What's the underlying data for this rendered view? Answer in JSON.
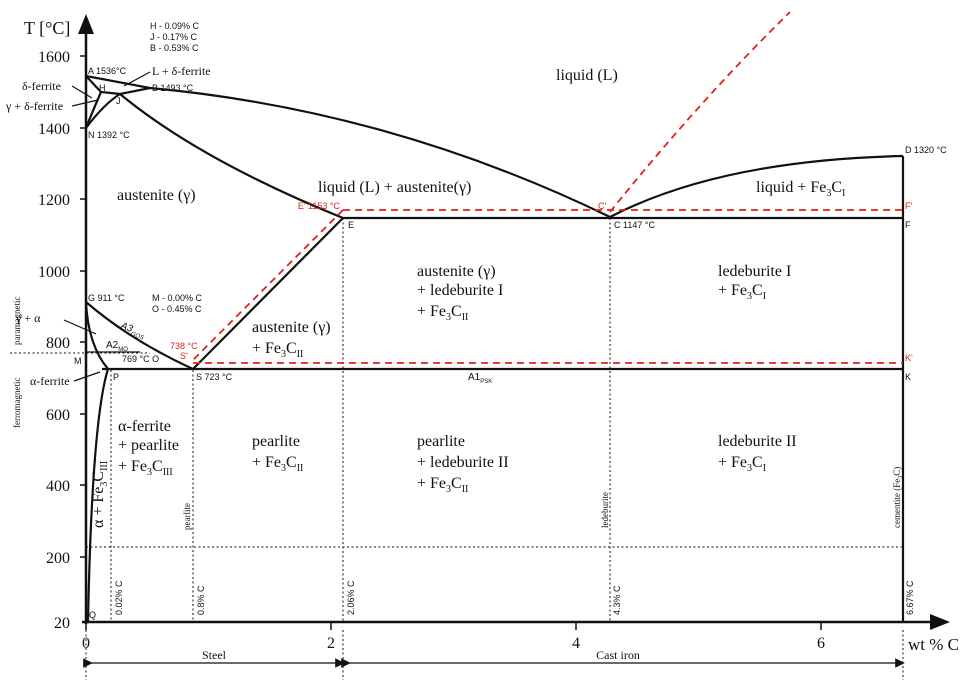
{
  "axes": {
    "y_title": "T [°C]",
    "x_title": "wt % C",
    "y_ticks": [
      "1600",
      "1400",
      "1200",
      "1000",
      "800",
      "600",
      "400",
      "200",
      "20"
    ],
    "x_ticks": [
      "0",
      "2",
      "4",
      "6"
    ],
    "steel": "Steel",
    "cast_iron": "Cast iron",
    "paramagnetic": "paramagnetic",
    "ferromagnetic": "ferromagnetic"
  },
  "legend_hjb": [
    "H - 0.09%  C",
    "J  - 0.17%  C",
    "B - 0.53%  C"
  ],
  "legend_mo": [
    "M - 0.00%  C",
    "O - 0.45%  C"
  ],
  "points": {
    "A": "A 1536°C",
    "H": "H",
    "J": "J",
    "B": "B 1493 °C",
    "N": "N 1392 °C",
    "D": "D 1320 °C",
    "Eprime": "E' 1153 °C",
    "Cprime": "C'",
    "Fprime": "F'",
    "E": "E",
    "C": "C 1147 °C",
    "F": "F",
    "G": "G 911 °C",
    "M": "M",
    "O": "769 °C  O",
    "Sprime_temp": "738 °C",
    "Sprime": "S'",
    "Kprime": "K'",
    "P": "P",
    "S": "S 723 °C",
    "K": "K",
    "Q": "Q",
    "A3": "A3",
    "A3_sub": "GOS",
    "A2": "A2",
    "A2_sub": "MO",
    "A1": "A1",
    "A1_sub": "PSK"
  },
  "regions": {
    "liquid": "liquid (L)",
    "l_delta": "L + δ-ferrite",
    "delta_ferrite": "δ-ferrite",
    "gamma_delta": "γ + δ-ferrite",
    "austenite": "austenite (γ)",
    "l_austenite": "liquid (L) + austenite(γ)",
    "liquid_fe3c": "liquid + Fe",
    "aust_led": [
      "austenite (γ)",
      "+ ledeburite I",
      "+ Fe"
    ],
    "ledeburite1": [
      "ledeburite I",
      "+ Fe"
    ],
    "gamma_alpha": "γ + α",
    "aust_fe3c": [
      "austenite (γ)",
      "+ Fe"
    ],
    "alpha_ferrite_small": "α-ferrite",
    "alpha_pearlite": [
      "α-ferrite",
      "+ pearlite",
      "+ Fe"
    ],
    "pearlite": [
      "pearlite",
      "+ Fe"
    ],
    "pearlite_led": [
      "pearlite",
      "+ ledeburite II",
      "+ Fe"
    ],
    "ledeburite2": [
      "ledeburite II",
      "+ Fe"
    ],
    "alpha_fe3c": "α + Fe",
    "sub_3": "3",
    "sub_I": "I",
    "sub_II": "II",
    "sub_III": "III",
    "C": "C"
  },
  "vertical_labels": {
    "c002": "0.02% C",
    "c08": "0.8% C",
    "c206": "2.06% C",
    "c43": "4.3% C",
    "c667": "6.67% C",
    "pearlite": "pearlite",
    "ledeburite": "ledeburite",
    "cementite": "cementite (Fe",
    "cementite_sub": "3",
    "cementite_end": "C)"
  }
}
